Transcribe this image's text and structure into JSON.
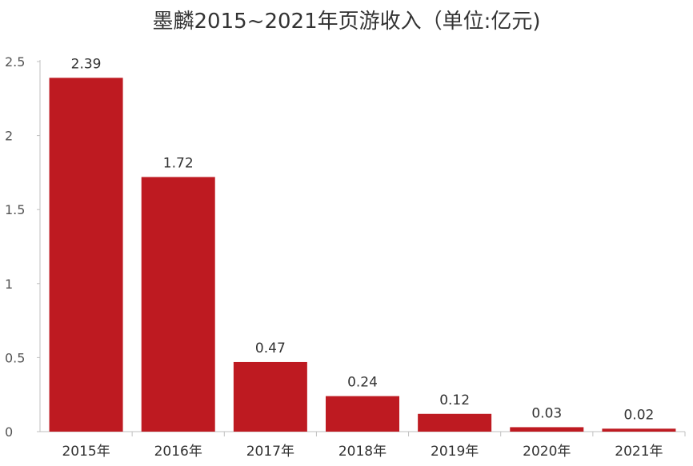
{
  "chart_data": {
    "type": "bar",
    "title": "墨麟2015~2021年页游收入（单位:亿元)",
    "xlabel": "",
    "ylabel": "",
    "categories": [
      "2015年",
      "2016年",
      "2017年",
      "2018年",
      "2019年",
      "2020年",
      "2021年"
    ],
    "values": [
      2.39,
      1.72,
      0.47,
      0.24,
      0.12,
      0.03,
      0.02
    ],
    "value_labels": [
      "2.39",
      "1.72",
      "0.47",
      "0.24",
      "0.12",
      "0.03",
      "0.02"
    ],
    "ylim": [
      0,
      2.5
    ],
    "yticks": [
      0,
      0.5,
      1,
      1.5,
      2,
      2.5
    ],
    "ytick_labels": [
      "0",
      "0.5",
      "1",
      "1.5",
      "2",
      "2.5"
    ],
    "grid": false,
    "legend": "none",
    "bar_color": "#BE1A21",
    "axis_color": "#BFBFBF"
  }
}
